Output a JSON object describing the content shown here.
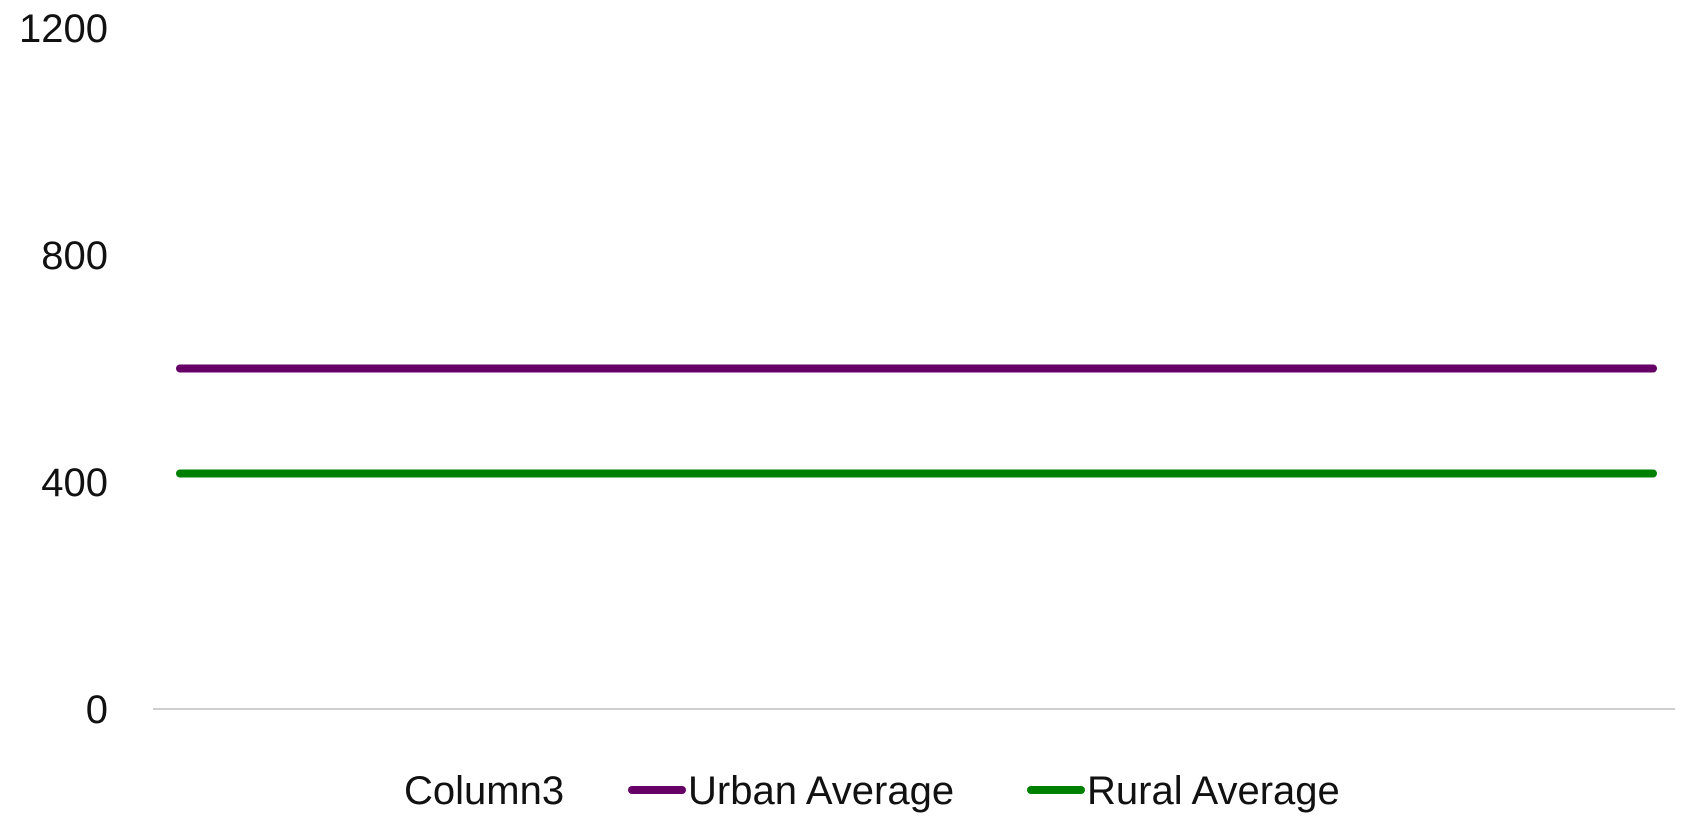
{
  "chart_data": {
    "type": "line",
    "categories": [
      ""
    ],
    "series": [
      {
        "name": "Column3",
        "values": [
          null
        ],
        "color": "#ffffff"
      },
      {
        "name": "Urban Average",
        "values": [
          600
        ],
        "color": "#660066"
      },
      {
        "name": "Rural Average",
        "values": [
          415
        ],
        "color": "#008000"
      }
    ],
    "yticks": [
      "0",
      "400",
      "800",
      "1200"
    ],
    "ylim": [
      0,
      1200
    ],
    "title": "",
    "xlabel": "",
    "ylabel": "",
    "grid": false,
    "legend_position": "bottom",
    "axis_color": "#bfbfbf"
  }
}
